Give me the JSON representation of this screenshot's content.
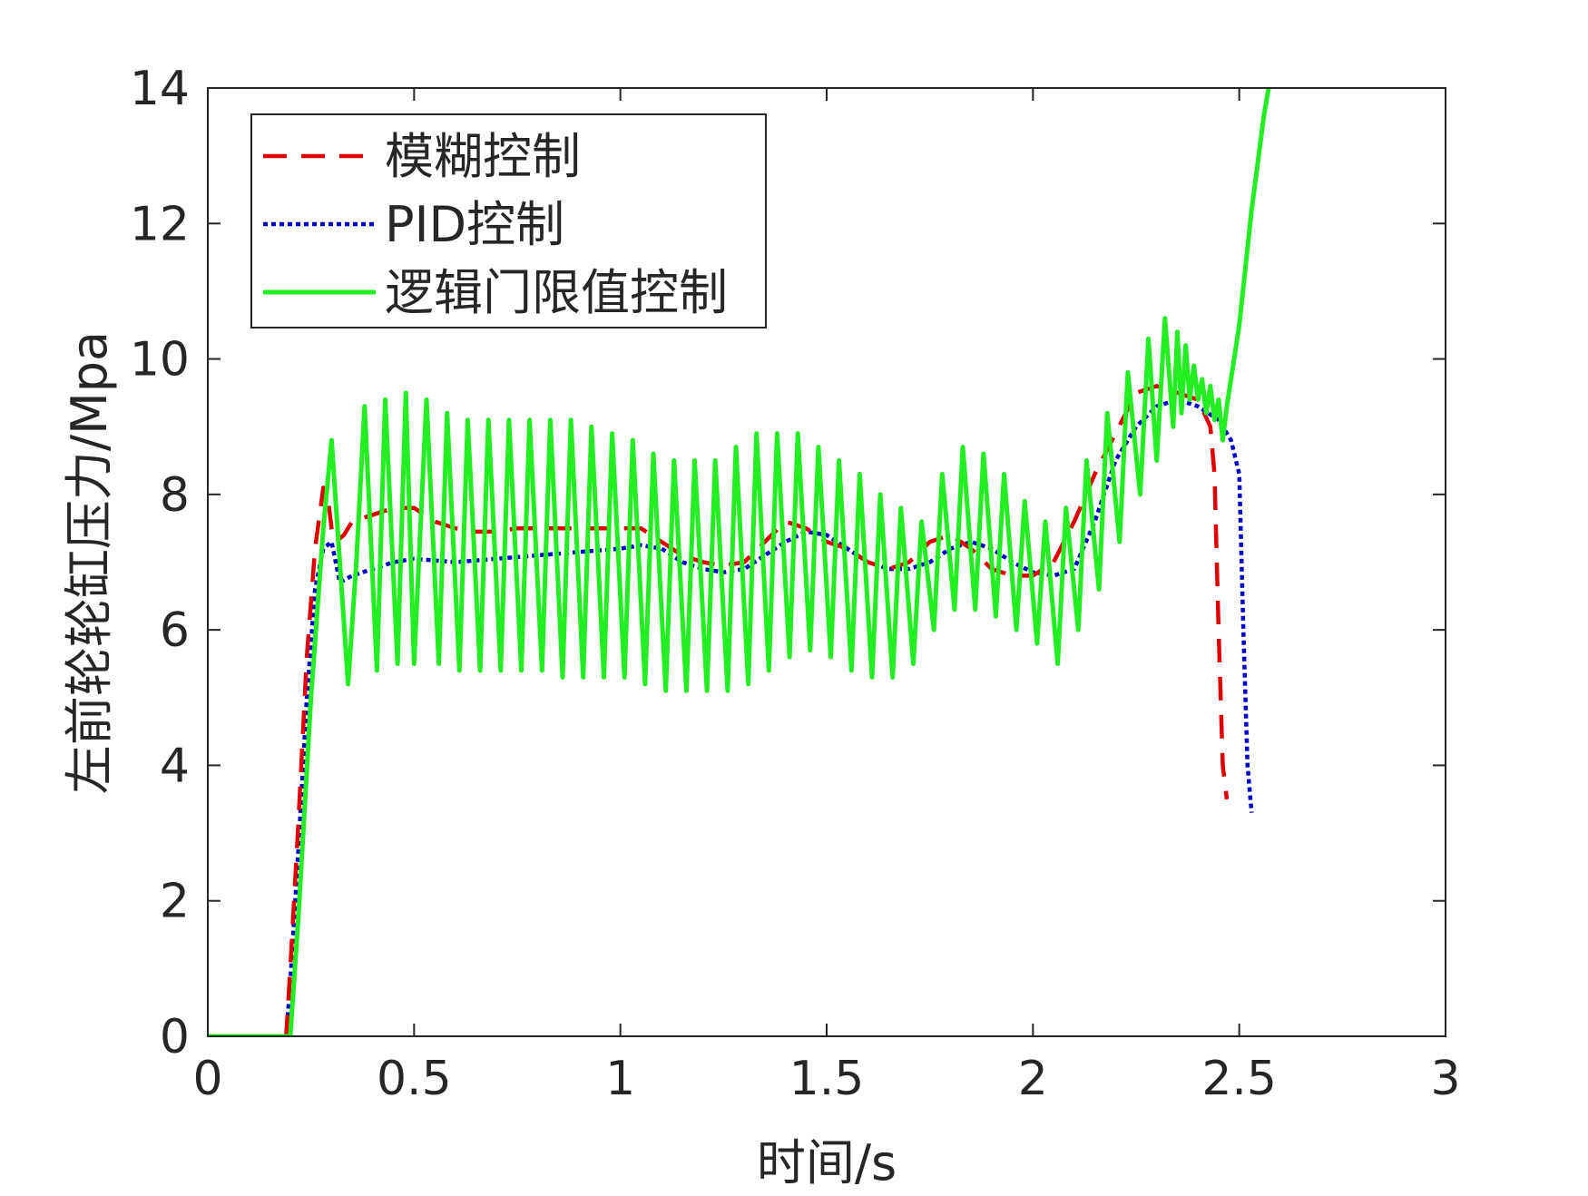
{
  "chart_data": {
    "type": "line",
    "xlabel": "时间/s",
    "ylabel": "左前轮轮缸压力/Mpa",
    "xlim": [
      0,
      3
    ],
    "ylim": [
      0,
      14
    ],
    "x_ticks": [
      0,
      0.5,
      1,
      1.5,
      2,
      2.5,
      3
    ],
    "x_tick_labels": [
      "0",
      "0.5",
      "1",
      "1.5",
      "2",
      "2.5",
      "3"
    ],
    "y_ticks": [
      0,
      2,
      4,
      6,
      8,
      10,
      12,
      14
    ],
    "y_tick_labels": [
      "0",
      "2",
      "4",
      "6",
      "8",
      "10",
      "12",
      "14"
    ],
    "grid": false,
    "legend_position": "top-left",
    "series": [
      {
        "name": "模糊控制",
        "color": "#e00000",
        "style": "dashed",
        "x": [
          0,
          0.19,
          0.2,
          0.22,
          0.24,
          0.26,
          0.28,
          0.29,
          0.3,
          0.31,
          0.33,
          0.35,
          0.4,
          0.45,
          0.5,
          0.55,
          0.6,
          0.65,
          0.7,
          0.75,
          0.8,
          0.85,
          0.9,
          0.95,
          1.0,
          1.05,
          1.1,
          1.15,
          1.2,
          1.25,
          1.3,
          1.35,
          1.4,
          1.45,
          1.5,
          1.55,
          1.6,
          1.65,
          1.7,
          1.75,
          1.8,
          1.85,
          1.9,
          1.95,
          2.0,
          2.05,
          2.1,
          2.15,
          2.2,
          2.25,
          2.3,
          2.35,
          2.4,
          2.43,
          2.44,
          2.45,
          2.46,
          2.47
        ],
        "y": [
          0,
          0,
          1.0,
          3.2,
          5.6,
          7.2,
          8.1,
          8.0,
          7.5,
          7.3,
          7.4,
          7.6,
          7.7,
          7.8,
          7.8,
          7.6,
          7.5,
          7.45,
          7.45,
          7.5,
          7.5,
          7.5,
          7.5,
          7.5,
          7.5,
          7.5,
          7.3,
          7.1,
          7.0,
          6.95,
          7.0,
          7.3,
          7.6,
          7.5,
          7.3,
          7.2,
          7.0,
          6.9,
          7.0,
          7.3,
          7.4,
          7.2,
          6.9,
          6.8,
          6.8,
          7.0,
          7.6,
          8.3,
          8.9,
          9.5,
          9.6,
          9.5,
          9.4,
          9.0,
          8.3,
          6.0,
          4.0,
          3.5
        ]
      },
      {
        "name": "PID控制",
        "color": "#0000cc",
        "style": "dotted",
        "x": [
          0,
          0.19,
          0.2,
          0.22,
          0.24,
          0.26,
          0.28,
          0.3,
          0.32,
          0.35,
          0.4,
          0.45,
          0.5,
          0.6,
          0.7,
          0.8,
          0.9,
          1.0,
          1.05,
          1.1,
          1.15,
          1.2,
          1.25,
          1.3,
          1.35,
          1.4,
          1.45,
          1.5,
          1.55,
          1.6,
          1.65,
          1.7,
          1.75,
          1.8,
          1.85,
          1.9,
          1.95,
          2.0,
          2.05,
          2.1,
          2.15,
          2.2,
          2.25,
          2.3,
          2.35,
          2.4,
          2.45,
          2.48,
          2.5,
          2.51,
          2.52,
          2.53
        ],
        "y": [
          0,
          0,
          0.8,
          2.8,
          5.0,
          6.6,
          7.2,
          7.3,
          6.7,
          6.8,
          6.9,
          7.0,
          7.05,
          7.0,
          7.05,
          7.1,
          7.15,
          7.2,
          7.25,
          7.2,
          7.0,
          6.9,
          6.85,
          6.9,
          7.1,
          7.3,
          7.45,
          7.4,
          7.2,
          7.0,
          6.9,
          6.9,
          7.0,
          7.2,
          7.3,
          7.2,
          7.0,
          6.85,
          6.8,
          6.9,
          7.6,
          8.5,
          9.0,
          9.3,
          9.4,
          9.3,
          9.1,
          8.8,
          8.3,
          6.0,
          4.0,
          3.3
        ]
      },
      {
        "name": "逻辑门限值控制",
        "color": "#22ee22",
        "style": "solid",
        "x": [
          0,
          0.2,
          0.22,
          0.25,
          0.28,
          0.3,
          0.32,
          0.34,
          0.36,
          0.38,
          0.41,
          0.43,
          0.46,
          0.48,
          0.5,
          0.53,
          0.56,
          0.58,
          0.61,
          0.63,
          0.66,
          0.68,
          0.71,
          0.73,
          0.76,
          0.78,
          0.81,
          0.83,
          0.86,
          0.88,
          0.91,
          0.93,
          0.96,
          0.98,
          1.01,
          1.03,
          1.06,
          1.08,
          1.11,
          1.13,
          1.16,
          1.18,
          1.21,
          1.23,
          1.26,
          1.28,
          1.31,
          1.33,
          1.36,
          1.38,
          1.41,
          1.43,
          1.46,
          1.48,
          1.51,
          1.53,
          1.56,
          1.58,
          1.61,
          1.63,
          1.66,
          1.68,
          1.71,
          1.73,
          1.76,
          1.78,
          1.81,
          1.83,
          1.86,
          1.88,
          1.91,
          1.93,
          1.96,
          1.98,
          2.01,
          2.03,
          2.06,
          2.08,
          2.11,
          2.13,
          2.16,
          2.18,
          2.21,
          2.23,
          2.26,
          2.28,
          2.3,
          2.32,
          2.34,
          2.35,
          2.36,
          2.37,
          2.38,
          2.39,
          2.4,
          2.41,
          2.42,
          2.43,
          2.44,
          2.45,
          2.46,
          2.47,
          2.5,
          2.53,
          2.56,
          2.58
        ],
        "y": [
          0,
          0,
          1.8,
          5.0,
          7.5,
          8.8,
          7.0,
          5.2,
          7.0,
          9.3,
          5.4,
          9.4,
          5.5,
          9.5,
          5.5,
          9.4,
          5.5,
          9.2,
          5.4,
          9.1,
          5.4,
          9.1,
          5.4,
          9.1,
          5.4,
          9.1,
          5.4,
          9.1,
          5.3,
          9.1,
          5.3,
          9.0,
          5.3,
          8.9,
          5.3,
          8.8,
          5.2,
          8.6,
          5.1,
          8.5,
          5.1,
          8.5,
          5.1,
          8.5,
          5.1,
          8.7,
          5.2,
          8.9,
          5.4,
          8.9,
          5.6,
          8.9,
          5.7,
          8.7,
          5.6,
          8.5,
          5.4,
          8.3,
          5.3,
          8.0,
          5.3,
          7.8,
          5.5,
          7.6,
          6.0,
          8.3,
          6.3,
          8.7,
          6.3,
          8.6,
          6.2,
          8.3,
          6.0,
          7.9,
          5.8,
          7.6,
          5.5,
          7.8,
          6.0,
          8.5,
          6.6,
          9.2,
          7.3,
          9.8,
          8.0,
          10.3,
          8.5,
          10.6,
          9.0,
          10.4,
          9.2,
          10.2,
          9.4,
          9.9,
          9.4,
          9.7,
          9.2,
          9.6,
          9.1,
          9.4,
          8.8,
          9.3,
          10.5,
          12.2,
          13.6,
          14.3
        ]
      }
    ]
  }
}
